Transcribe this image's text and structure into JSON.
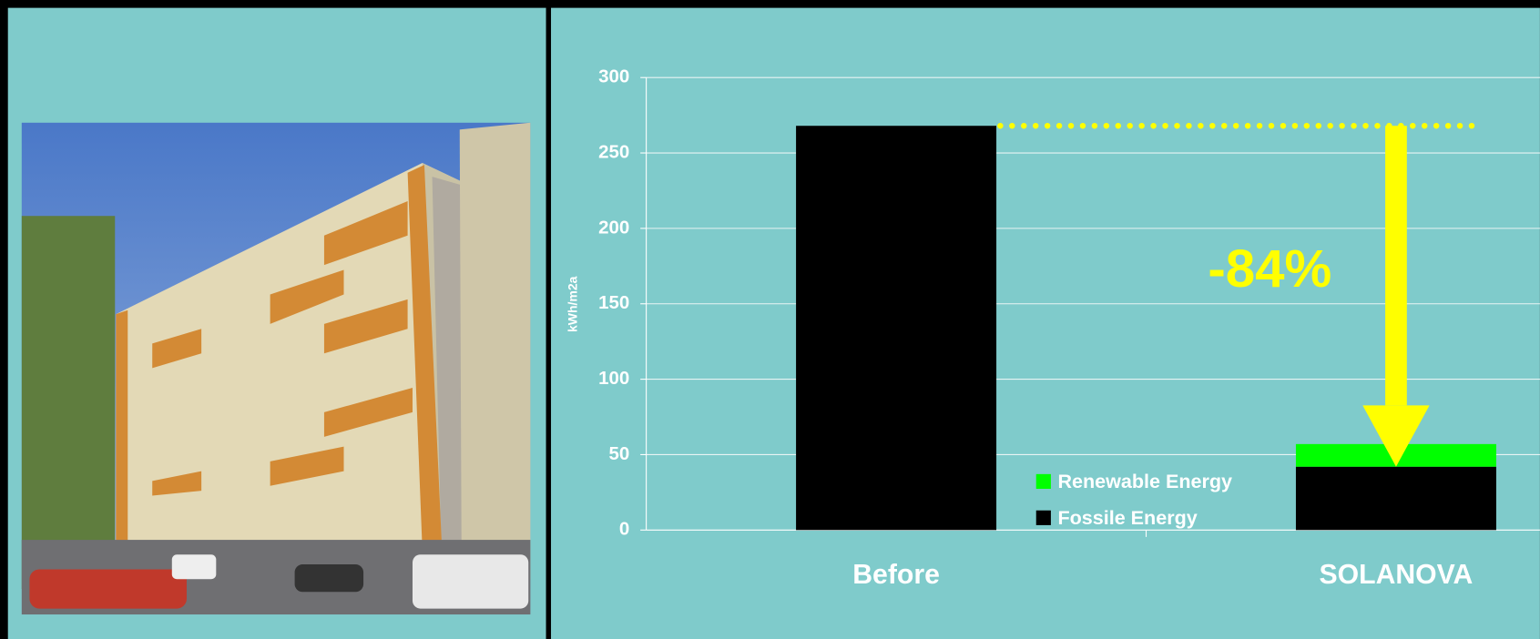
{
  "chart_data": {
    "type": "stacked-bar",
    "y_label": "kWh/m2a",
    "annotation": "-84%",
    "categories": [
      "Before",
      "SOLANOVA"
    ],
    "series": [
      {
        "name": "Fossile Energy",
        "color": "#000000",
        "values": [
          268,
          42
        ]
      },
      {
        "name": "Renewable Energy",
        "color": "#00ff00",
        "values": [
          null,
          15
        ]
      }
    ],
    "ylim": [
      0,
      300
    ],
    "yticks": [
      0,
      50,
      100,
      150,
      200,
      250,
      300
    ],
    "grid": true
  }
}
